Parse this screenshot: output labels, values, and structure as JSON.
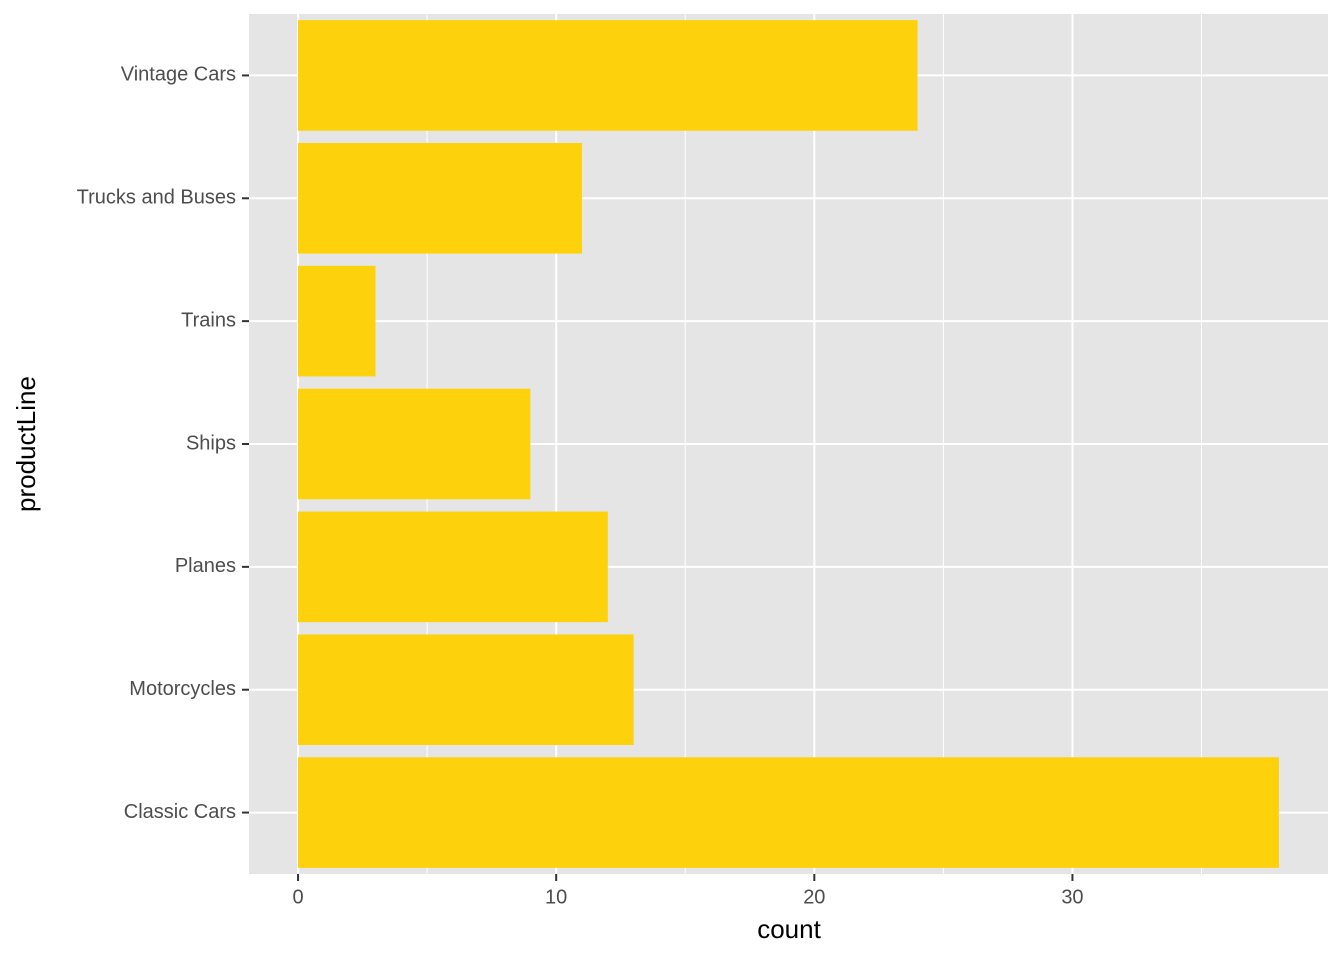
{
  "chart_data": {
    "type": "bar",
    "orientation": "horizontal",
    "categories": [
      "Classic Cars",
      "Motorcycles",
      "Planes",
      "Ships",
      "Trains",
      "Trucks and Buses",
      "Vintage Cars"
    ],
    "values": [
      38,
      13,
      12,
      9,
      3,
      11,
      24
    ],
    "color": "#fdd10b",
    "x_label": "count",
    "y_label": "productLine",
    "xlim": [
      -1.9,
      39.9
    ],
    "xticks": [
      0,
      10,
      20,
      30
    ],
    "grid": true
  }
}
